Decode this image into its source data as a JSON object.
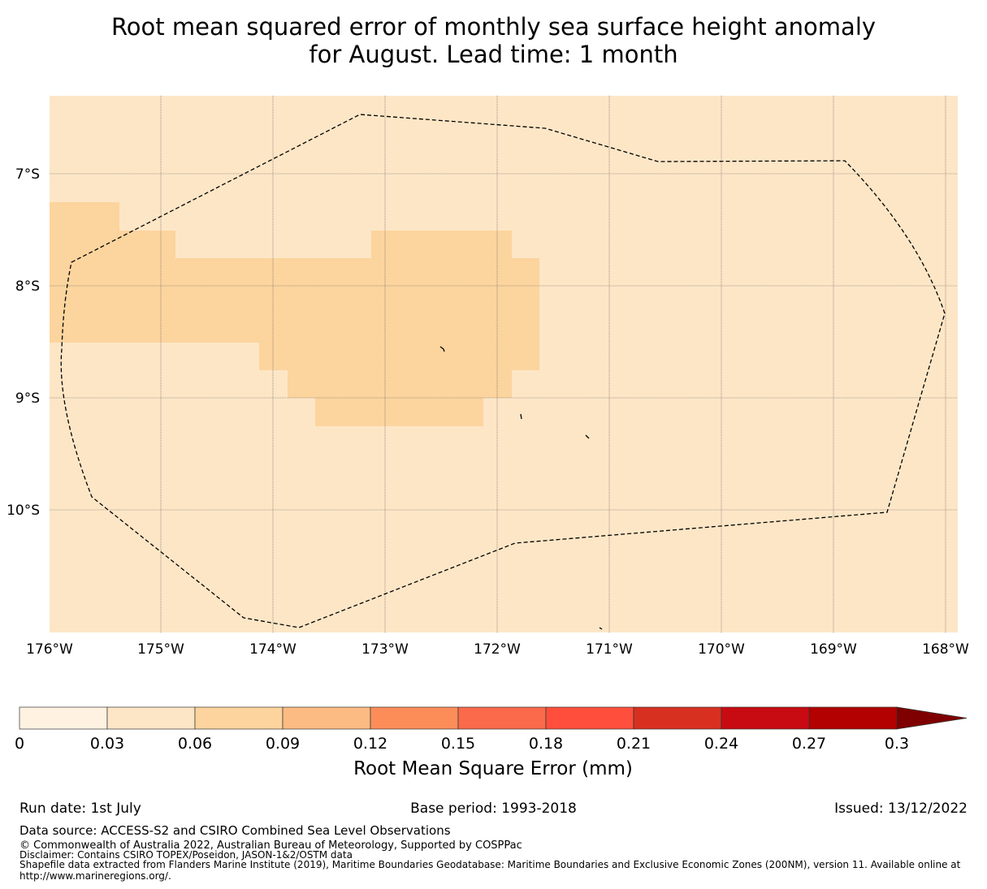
{
  "title": {
    "line1": "Root mean squared error of monthly sea surface height anomaly",
    "line2": "for August. Lead time: 1 month"
  },
  "map": {
    "background_color": "#fde6c6",
    "anomaly_color": "#fcd49e",
    "lon_ticks": [
      "176°W",
      "175°W",
      "174°W",
      "173°W",
      "172°W",
      "171°W",
      "170°W",
      "169°W",
      "168°W"
    ],
    "lat_ticks": [
      "7°S",
      "8°S",
      "9°S",
      "10°S"
    ]
  },
  "colorbar": {
    "tick_labels": [
      "0",
      "0.03",
      "0.06",
      "0.09",
      "0.12",
      "0.15",
      "0.18",
      "0.21",
      "0.24",
      "0.27",
      "0.3"
    ],
    "colors": [
      "#fff2e1",
      "#fde6c6",
      "#fdd49e",
      "#fcbb83",
      "#fc8d59",
      "#fb6a4a",
      "#ff4f3c",
      "#d73020",
      "#c80b12",
      "#b30000",
      "#7f0000"
    ],
    "label": "Root Mean Square Error (mm)"
  },
  "footer": {
    "run_date": "Run date: 1st July",
    "base_period": "Base period: 1993-2018",
    "issued": "Issued: 13/12/2022",
    "data_source": "Data source: ACCESS-S2 and CSIRO Combined Sea Level Observations",
    "copyright": "© Commonwealth of Australia 2022, Australian Bureau of Meteorology, Supported by COSPPac",
    "disclaimer": "Disclaimer: Contains CSIRO TOPEX/Poseidon, JASON-1&2/OSTM data",
    "shapefile_line1": "Shapefile data extracted from Flanders Marine Institute (2019), Maritime Boundaries Geodatabase: Maritime Boundaries and Exclusive Economic Zones (200NM), version 11. Available online at",
    "shapefile_line2": "http://www.marineregions.org/."
  }
}
